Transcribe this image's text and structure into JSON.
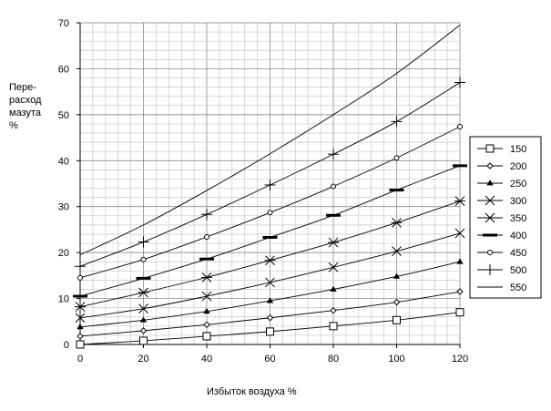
{
  "chart_data": {
    "type": "line",
    "title": "",
    "ylabel_lines": [
      "Пере-",
      "расход",
      "мазута",
      "%"
    ],
    "xlabel": "Избыток воздуха %",
    "x": [
      0,
      20,
      40,
      60,
      80,
      100,
      120
    ],
    "xlim": [
      0,
      120
    ],
    "ylim": [
      0,
      70
    ],
    "xticks": [
      0,
      20,
      40,
      60,
      80,
      100,
      120
    ],
    "yticks": [
      0,
      10,
      20,
      30,
      40,
      50,
      60,
      70
    ],
    "grid": true,
    "legend_position": "right",
    "series": [
      {
        "name": "150",
        "marker": "square",
        "values": [
          0,
          0.8,
          1.8,
          2.8,
          4.0,
          5.3,
          7.0
        ]
      },
      {
        "name": "200",
        "marker": "diamond",
        "values": [
          1.8,
          3.0,
          4.3,
          5.8,
          7.4,
          9.2,
          11.5
        ]
      },
      {
        "name": "250",
        "marker": "triangle",
        "values": [
          3.8,
          5.3,
          7.2,
          9.5,
          12.0,
          14.8,
          18.0
        ]
      },
      {
        "name": "300",
        "marker": "x",
        "values": [
          5.8,
          7.8,
          10.5,
          13.5,
          16.8,
          20.3,
          24.2
        ]
      },
      {
        "name": "350",
        "marker": "star",
        "values": [
          8.2,
          11.3,
          14.6,
          18.3,
          22.2,
          26.5,
          31.2
        ]
      },
      {
        "name": "400",
        "marker": "dash",
        "values": [
          10.5,
          14.4,
          18.6,
          23.3,
          28.1,
          33.6,
          38.9
        ]
      },
      {
        "name": "450",
        "marker": "circle",
        "values": [
          14.5,
          18.5,
          23.4,
          28.7,
          34.4,
          40.6,
          47.4
        ]
      },
      {
        "name": "500",
        "marker": "plus",
        "values": [
          17.0,
          22.3,
          28.3,
          34.7,
          41.4,
          48.5,
          57.0
        ]
      },
      {
        "name": "550",
        "marker": "none",
        "values": [
          19.5,
          26.0,
          33.5,
          41.5,
          50.0,
          59.0,
          69.5
        ]
      }
    ]
  }
}
